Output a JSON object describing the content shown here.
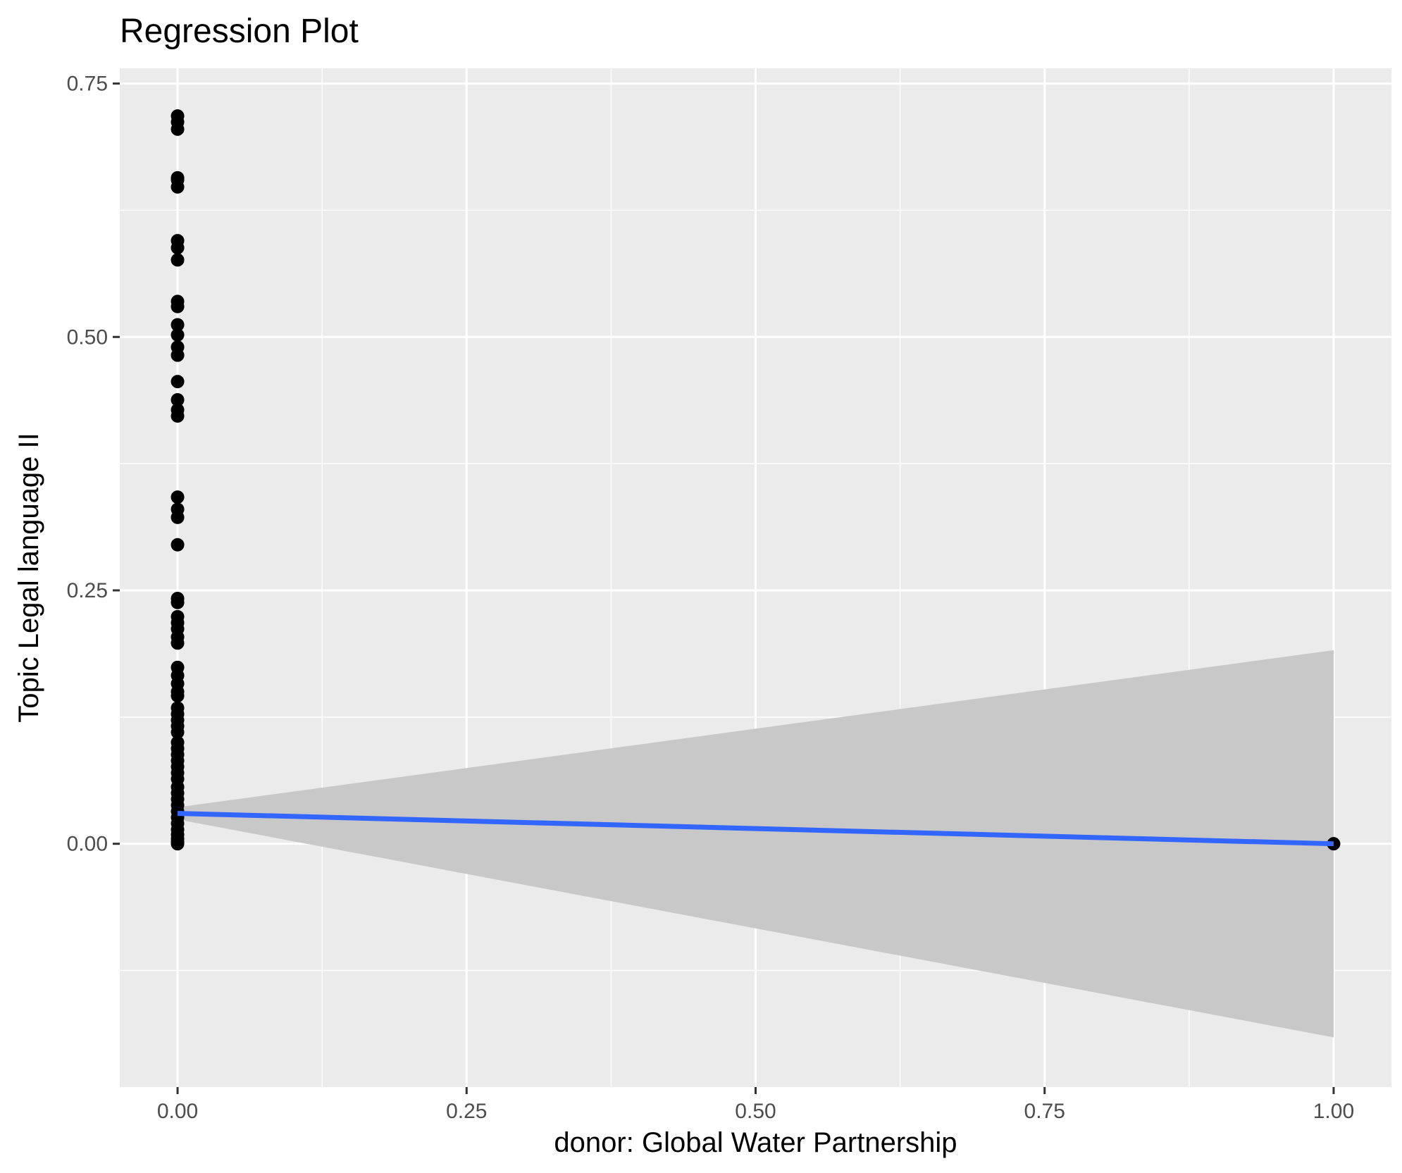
{
  "chart_data": {
    "type": "scatter",
    "title": "Regression Plot",
    "xlabel": "donor: Global Water Partnership",
    "ylabel": "Topic Legal language II",
    "xlim": [
      -0.05,
      1.05
    ],
    "ylim": [
      -0.24,
      0.765
    ],
    "x_ticks": [
      0.0,
      0.25,
      0.5,
      0.75,
      1.0
    ],
    "x_tick_labels": [
      "0.00",
      "0.25",
      "0.50",
      "0.75",
      "1.00"
    ],
    "y_ticks": [
      0.0,
      0.25,
      0.5,
      0.75
    ],
    "y_tick_labels": [
      "0.00",
      "0.25",
      "0.50",
      "0.75"
    ],
    "grid": true,
    "background": "#ebebeb",
    "colors": {
      "points": "#000000",
      "line": "#3366ff",
      "ribbon": "#c8c8c8"
    },
    "points": [
      {
        "x": 0,
        "y": 0.718
      },
      {
        "x": 0,
        "y": 0.712
      },
      {
        "x": 0,
        "y": 0.705
      },
      {
        "x": 0,
        "y": 0.657
      },
      {
        "x": 0,
        "y": 0.655
      },
      {
        "x": 0,
        "y": 0.648
      },
      {
        "x": 0,
        "y": 0.595
      },
      {
        "x": 0,
        "y": 0.588
      },
      {
        "x": 0,
        "y": 0.576
      },
      {
        "x": 0,
        "y": 0.535
      },
      {
        "x": 0,
        "y": 0.53
      },
      {
        "x": 0,
        "y": 0.512
      },
      {
        "x": 0,
        "y": 0.502
      },
      {
        "x": 0,
        "y": 0.49
      },
      {
        "x": 0,
        "y": 0.482
      },
      {
        "x": 0,
        "y": 0.456
      },
      {
        "x": 0,
        "y": 0.438
      },
      {
        "x": 0,
        "y": 0.428
      },
      {
        "x": 0,
        "y": 0.422
      },
      {
        "x": 0,
        "y": 0.342
      },
      {
        "x": 0,
        "y": 0.33
      },
      {
        "x": 0,
        "y": 0.322
      },
      {
        "x": 0,
        "y": 0.295
      },
      {
        "x": 0,
        "y": 0.242
      },
      {
        "x": 0,
        "y": 0.238
      },
      {
        "x": 0,
        "y": 0.224
      },
      {
        "x": 0,
        "y": 0.218
      },
      {
        "x": 0,
        "y": 0.212
      },
      {
        "x": 0,
        "y": 0.204
      },
      {
        "x": 0,
        "y": 0.198
      },
      {
        "x": 0,
        "y": 0.174
      },
      {
        "x": 0,
        "y": 0.166
      },
      {
        "x": 0,
        "y": 0.158
      },
      {
        "x": 0,
        "y": 0.15
      },
      {
        "x": 0,
        "y": 0.146
      },
      {
        "x": 0,
        "y": 0.134
      },
      {
        "x": 0,
        "y": 0.128
      },
      {
        "x": 0,
        "y": 0.122
      },
      {
        "x": 0,
        "y": 0.116
      },
      {
        "x": 0,
        "y": 0.11
      },
      {
        "x": 0,
        "y": 0.1
      },
      {
        "x": 0,
        "y": 0.094
      },
      {
        "x": 0,
        "y": 0.088
      },
      {
        "x": 0,
        "y": 0.082
      },
      {
        "x": 0,
        "y": 0.076
      },
      {
        "x": 0,
        "y": 0.07
      },
      {
        "x": 0,
        "y": 0.064
      },
      {
        "x": 0,
        "y": 0.056
      },
      {
        "x": 0,
        "y": 0.05
      },
      {
        "x": 0,
        "y": 0.044
      },
      {
        "x": 0,
        "y": 0.038
      },
      {
        "x": 0,
        "y": 0.032
      },
      {
        "x": 0,
        "y": 0.026
      },
      {
        "x": 0,
        "y": 0.02
      },
      {
        "x": 0,
        "y": 0.014
      },
      {
        "x": 0,
        "y": 0.009
      },
      {
        "x": 0,
        "y": 0.005
      },
      {
        "x": 0,
        "y": 0.002
      },
      {
        "x": 0,
        "y": 0.0
      },
      {
        "x": 1,
        "y": 0.0
      }
    ],
    "regression_line": {
      "x": [
        0,
        1
      ],
      "y": [
        0.03,
        0.0
      ]
    },
    "confidence_band": {
      "x": [
        0,
        1
      ],
      "upper": [
        0.036,
        0.191
      ],
      "lower": [
        0.024,
        -0.191
      ]
    }
  }
}
